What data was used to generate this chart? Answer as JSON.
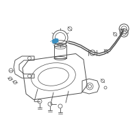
{
  "bg_color": "#ffffff",
  "line_color": "#4a4a4a",
  "highlight_color": "#3a8fc0",
  "figsize": [
    2.0,
    2.0
  ],
  "dpi": 100
}
